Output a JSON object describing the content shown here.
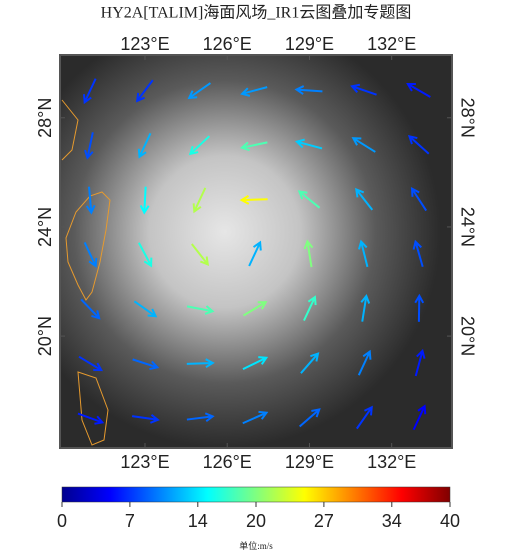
{
  "chart_data": {
    "type": "wind-map",
    "title": "HY2A[TALIM]海面风场_IR1云图叠加专题图",
    "xlim": [
      119.9,
      134.2
    ],
    "ylim": [
      15.9,
      30.3
    ],
    "xticks": [
      {
        "value": 123,
        "label": "123°E"
      },
      {
        "value": 126,
        "label": "126°E"
      },
      {
        "value": 129,
        "label": "129°E"
      },
      {
        "value": 132,
        "label": "132°E"
      }
    ],
    "yticks": [
      {
        "value": 20,
        "label": "20°N"
      },
      {
        "value": 24,
        "label": "24°N"
      },
      {
        "value": 28,
        "label": "28°N"
      }
    ],
    "colorbar": {
      "clim": [
        0,
        40
      ],
      "ticks": [
        0,
        7,
        14,
        20,
        27,
        34,
        40
      ],
      "colormap": "jet",
      "unit": "单位:m/s"
    },
    "vectors": {
      "lon": [
        121,
        123,
        125,
        127,
        129,
        131,
        133,
        121,
        123,
        125,
        127,
        129,
        131,
        133,
        121,
        123,
        125,
        127,
        129,
        131,
        133,
        121,
        123,
        125,
        127,
        129,
        131,
        133,
        121,
        123,
        125,
        127,
        129,
        131,
        133,
        121,
        123,
        125,
        127,
        129,
        131,
        133,
        121,
        123,
        125,
        127,
        129,
        131,
        133
      ],
      "lat": [
        29,
        29,
        29,
        29,
        29,
        29,
        29,
        27,
        27,
        27,
        27,
        27,
        27,
        27,
        25,
        25,
        25,
        25,
        25,
        25,
        25,
        23,
        23,
        23,
        23,
        23,
        23,
        23,
        21,
        21,
        21,
        21,
        21,
        21,
        21,
        19,
        19,
        19,
        19,
        19,
        19,
        19,
        17,
        17,
        17,
        17,
        17,
        17,
        17
      ],
      "speed": [
        7,
        7,
        11,
        11,
        10,
        7,
        6,
        8,
        12,
        16,
        18,
        13,
        11,
        7,
        10,
        15,
        22,
        25,
        18,
        12,
        8,
        10,
        16,
        22,
        12,
        20,
        12,
        8,
        9,
        12,
        18,
        20,
        17,
        12,
        8,
        7,
        9,
        12,
        14,
        12,
        10,
        6,
        6,
        7,
        9,
        10,
        9,
        7,
        5
      ],
      "direction": [
        205,
        217,
        235,
        255,
        274,
        289,
        300,
        192,
        205,
        227,
        258,
        285,
        302,
        312,
        175,
        183,
        205,
        268,
        309,
        322,
        327,
        155,
        152,
        142,
        25,
        351,
        346,
        344,
        136,
        125,
        101,
        59,
        25,
        9,
        1,
        121,
        108,
        88,
        64,
        41,
        25,
        15,
        110,
        98,
        83,
        66,
        49,
        35,
        25
      ]
    }
  }
}
